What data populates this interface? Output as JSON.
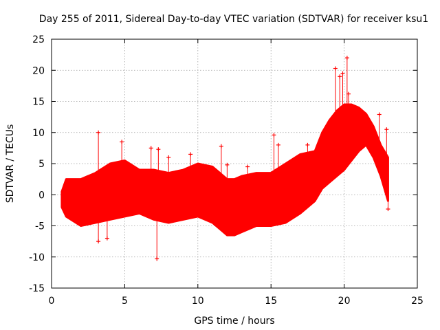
{
  "chart_data": {
    "type": "scatter",
    "title": "Day 255 of 2011, Sidereal Day-to-day VTEC variation (SDTVAR) for receiver ksu1",
    "xlabel": "GPS time / hours",
    "ylabel": "SDTVAR / TECUs",
    "xlim": [
      0,
      25
    ],
    "ylim": [
      -15,
      25
    ],
    "xticks": [
      0,
      5,
      10,
      15,
      20,
      25
    ],
    "yticks": [
      -15,
      -10,
      -5,
      0,
      5,
      10,
      15,
      20,
      25
    ],
    "grid": true,
    "marker": "+",
    "color": "#ff0000",
    "band": {
      "x": [
        0.7,
        1.0,
        2.0,
        3.0,
        4.0,
        5.0,
        6.0,
        7.0,
        8.0,
        9.0,
        10.0,
        11.0,
        11.5,
        12.0,
        12.5,
        13.0,
        14.0,
        15.0,
        16.0,
        17.0,
        18.0,
        18.5,
        19.0,
        19.5,
        20.0,
        20.5,
        21.0,
        21.5,
        22.0,
        22.5,
        23.0
      ],
      "upper": [
        0.5,
        2.5,
        2.5,
        3.5,
        5.0,
        5.5,
        4.0,
        4.0,
        3.5,
        4.0,
        5.0,
        4.5,
        3.5,
        2.5,
        2.5,
        3.0,
        3.5,
        3.5,
        5.0,
        6.5,
        7.0,
        10.0,
        12.0,
        13.5,
        14.5,
        14.5,
        14.0,
        13.0,
        11.0,
        8.0,
        6.0
      ],
      "lower": [
        -2.0,
        -3.5,
        -5.0,
        -4.5,
        -4.0,
        -3.5,
        -3.0,
        -4.0,
        -4.5,
        -4.0,
        -3.5,
        -4.5,
        -5.5,
        -6.5,
        -6.5,
        -6.0,
        -5.0,
        -5.0,
        -4.5,
        -3.0,
        -1.0,
        1.0,
        2.0,
        3.0,
        4.0,
        5.5,
        7.0,
        8.0,
        6.0,
        3.0,
        -1.0
      ]
    },
    "outliers": [
      {
        "x": 3.2,
        "y": 10.0
      },
      {
        "x": 3.2,
        "y": -7.5
      },
      {
        "x": 3.8,
        "y": -7.0
      },
      {
        "x": 4.8,
        "y": 8.5
      },
      {
        "x": 6.8,
        "y": 7.5
      },
      {
        "x": 7.2,
        "y": -10.3
      },
      {
        "x": 7.3,
        "y": 7.3
      },
      {
        "x": 8.0,
        "y": 6.0
      },
      {
        "x": 9.5,
        "y": 6.5
      },
      {
        "x": 11.6,
        "y": 7.8
      },
      {
        "x": 12.0,
        "y": 4.8
      },
      {
        "x": 13.4,
        "y": 4.5
      },
      {
        "x": 15.2,
        "y": 9.6
      },
      {
        "x": 15.5,
        "y": 8.0
      },
      {
        "x": 17.5,
        "y": 8.0
      },
      {
        "x": 19.4,
        "y": 20.3
      },
      {
        "x": 19.7,
        "y": 19.0
      },
      {
        "x": 19.9,
        "y": 19.5
      },
      {
        "x": 20.2,
        "y": 22.0
      },
      {
        "x": 20.3,
        "y": 16.2
      },
      {
        "x": 22.4,
        "y": 12.9
      },
      {
        "x": 22.9,
        "y": 10.5
      },
      {
        "x": 23.0,
        "y": -2.3
      }
    ]
  }
}
